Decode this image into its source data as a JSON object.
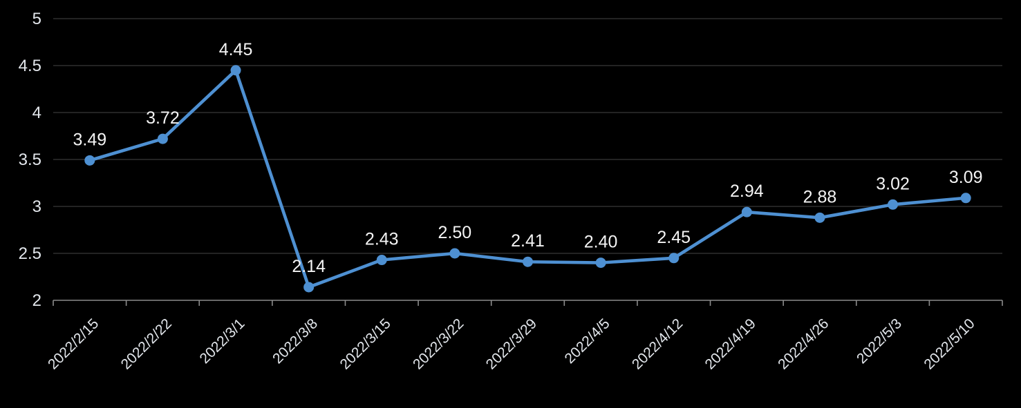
{
  "chart": {
    "background": "#000000",
    "line_color": "#4e90d2",
    "marker_color": "#4e90d2",
    "grid_color": "#2f2f2f",
    "axis_color": "#8c8c8c",
    "tick_label_color": "#e3e7ec",
    "data_label_color": "#f4f4f4"
  },
  "chart_data": {
    "type": "line",
    "title": "",
    "xlabel": "",
    "ylabel": "",
    "categories": [
      "2022/2/15",
      "2022/2/22",
      "2022/3/1",
      "2022/3/8",
      "2022/3/15",
      "2022/3/22",
      "2022/3/29",
      "2022/4/5",
      "2022/4/12",
      "2022/4/19",
      "2022/4/26",
      "2022/5/3",
      "2022/5/10"
    ],
    "values": [
      3.49,
      3.72,
      4.45,
      2.14,
      2.43,
      2.5,
      2.41,
      2.4,
      2.45,
      2.94,
      2.88,
      3.02,
      3.09
    ],
    "data_labels": [
      "3.49",
      "3.72",
      "4.45",
      "2.14",
      "2.43",
      "2.50",
      "2.41",
      "2.40",
      "2.45",
      "2.94",
      "2.88",
      "3.02",
      "3.09"
    ],
    "ylim": [
      2,
      5
    ],
    "ytick_labels": [
      "5",
      "4.5",
      "4",
      "3.5",
      "3",
      "2.5",
      "2"
    ],
    "ytick_values": [
      5,
      4.5,
      4,
      3.5,
      3,
      2.5,
      2
    ],
    "grid": "horizontal",
    "legend": "none",
    "x_label_rotation_deg": -45,
    "marker": "circle"
  }
}
